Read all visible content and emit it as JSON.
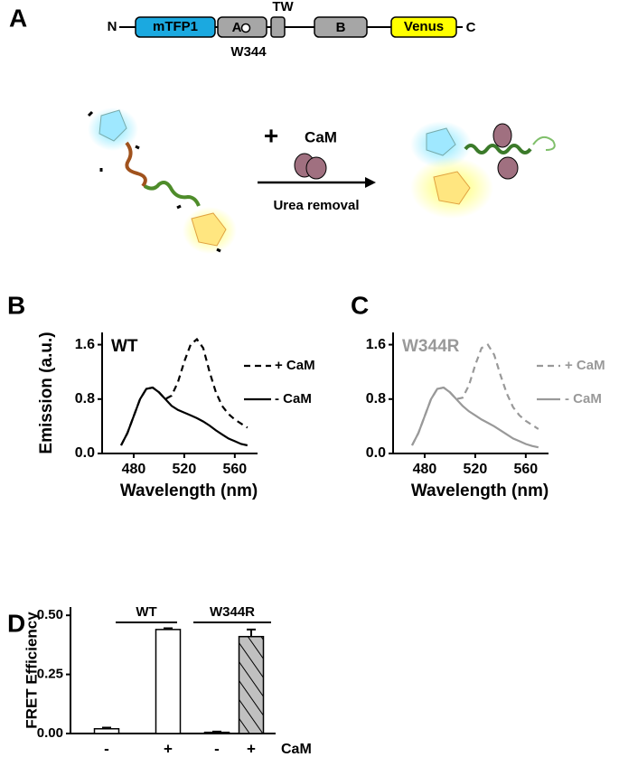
{
  "panel_labels": [
    "A",
    "B",
    "C",
    "D"
  ],
  "panel_a": {
    "domain_map": {
      "n_term": "N",
      "c_term": "C",
      "domains": [
        "mTFP1",
        "A",
        "TW",
        "B",
        "Venus"
      ],
      "mutation": "W344"
    },
    "reaction": {
      "plus": "+",
      "reagent": "CaM",
      "condition": "Urea removal"
    }
  },
  "chart_data": [
    {
      "type": "line",
      "title": "WT",
      "title_color": "#000000",
      "xlabel": "Wavelength (nm)",
      "ylabel": "Emission (a.u.)",
      "x": [
        470,
        475,
        480,
        485,
        490,
        495,
        500,
        505,
        510,
        515,
        520,
        525,
        530,
        535,
        540,
        545,
        550,
        555,
        560,
        565,
        570
      ],
      "xlim": [
        455,
        578
      ],
      "xticks": [
        480,
        520,
        560
      ],
      "ylim": [
        0,
        1.78
      ],
      "yticks": [
        {
          "value": 0,
          "label": "0.0"
        },
        0.8,
        1.6
      ],
      "series": [
        {
          "name": "+ CaM",
          "color": "#000000",
          "style": "dashed",
          "values": [
            0.12,
            0.3,
            0.55,
            0.8,
            0.95,
            0.97,
            0.9,
            0.8,
            0.85,
            1.05,
            1.35,
            1.6,
            1.68,
            1.55,
            1.2,
            0.9,
            0.7,
            0.58,
            0.5,
            0.44,
            0.38
          ]
        },
        {
          "name": "- CaM",
          "color": "#000000",
          "style": "solid",
          "values": [
            0.12,
            0.3,
            0.55,
            0.8,
            0.95,
            0.97,
            0.9,
            0.8,
            0.7,
            0.64,
            0.6,
            0.56,
            0.52,
            0.47,
            0.41,
            0.34,
            0.28,
            0.22,
            0.18,
            0.14,
            0.12
          ]
        }
      ]
    },
    {
      "type": "line",
      "title": "W344R",
      "title_color": "#999999",
      "xlabel": "Wavelength (nm)",
      "ylabel": null,
      "x": [
        470,
        475,
        480,
        485,
        490,
        495,
        500,
        505,
        510,
        515,
        520,
        525,
        530,
        535,
        540,
        545,
        550,
        555,
        560,
        565,
        570
      ],
      "xlim": [
        455,
        578
      ],
      "xticks": [
        480,
        520,
        560
      ],
      "ylim": [
        0,
        1.78
      ],
      "yticks": [
        {
          "value": 0,
          "label": "0.0"
        },
        0.8,
        1.6
      ],
      "series": [
        {
          "name": "+ CaM",
          "color": "#999999",
          "style": "dashed",
          "values": [
            0.12,
            0.3,
            0.55,
            0.8,
            0.95,
            0.97,
            0.9,
            0.8,
            0.82,
            1.0,
            1.3,
            1.55,
            1.6,
            1.45,
            1.15,
            0.88,
            0.68,
            0.56,
            0.48,
            0.42,
            0.36
          ]
        },
        {
          "name": "- CaM",
          "color": "#999999",
          "style": "solid",
          "values": [
            0.12,
            0.3,
            0.55,
            0.8,
            0.95,
            0.97,
            0.9,
            0.8,
            0.7,
            0.62,
            0.56,
            0.5,
            0.45,
            0.4,
            0.34,
            0.28,
            0.22,
            0.18,
            0.14,
            0.11,
            0.09
          ]
        }
      ]
    },
    {
      "type": "bar",
      "ylabel": "FRET Efficiency",
      "xlabel": "CaM",
      "categories": [
        "-",
        "+",
        "-",
        "+"
      ],
      "groups": [
        "WT",
        "W344R"
      ],
      "values": [
        0.02,
        0.44,
        0.005,
        0.41
      ],
      "errors": [
        0.005,
        0.005,
        0.003,
        0.03
      ],
      "colors": [
        "#ffffff",
        "#ffffff",
        "#c0c0c0",
        "#c0c0c0"
      ],
      "hatched": [
        false,
        false,
        true,
        true
      ],
      "ylim": [
        0,
        0.535
      ],
      "yticks": [
        {
          "value": 0,
          "label": "0.00"
        },
        {
          "value": 0.25,
          "label": "0.25"
        },
        {
          "value": 0.5,
          "label": "0.50"
        }
      ]
    }
  ]
}
